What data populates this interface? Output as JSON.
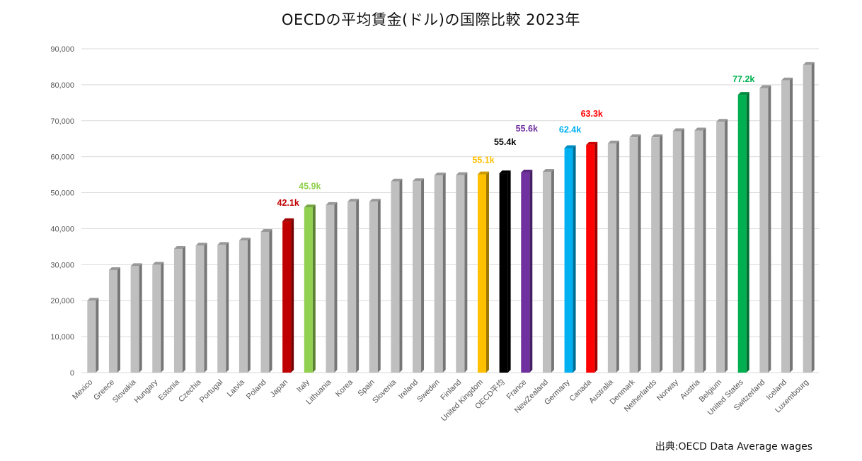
{
  "chart_data": {
    "type": "bar",
    "title": "OECDの平均賃金(ドル)の国際比較 2023年",
    "source": "出典:OECD Data Average wages",
    "xlabel": "",
    "ylabel": "",
    "ylim": [
      0,
      90000
    ],
    "yticks": [
      0,
      10000,
      20000,
      30000,
      40000,
      50000,
      60000,
      70000,
      80000,
      90000
    ],
    "ytick_labels": [
      "0",
      "10,000",
      "20,000",
      "30,000",
      "40,000",
      "50,000",
      "60,000",
      "70,000",
      "80,000",
      "90,000"
    ],
    "grid": true,
    "legend": "none",
    "categories": [
      "Mexico",
      "Greece",
      "Slovakia",
      "Hungary",
      "Estonia",
      "Czechia",
      "Portugal",
      "Latvia",
      "Poland",
      "Japan",
      "Italy",
      "Lithuania",
      "Korea",
      "Spain",
      "Slovenia",
      "Ireland",
      "Sweden",
      "Finland",
      "United Kingdom",
      "OECD平均",
      "France",
      "NewZealand",
      "Germany",
      "Canada",
      "Australia",
      "Denmark",
      "Netherlands",
      "Norway",
      "Austria",
      "Belgium",
      "United States",
      "Switzerland",
      "Iceland",
      "Luxembourg"
    ],
    "values": [
      20000,
      28500,
      29600,
      30000,
      34400,
      35300,
      35500,
      36700,
      39100,
      42100,
      45900,
      46600,
      47500,
      47500,
      53100,
      53200,
      54800,
      54900,
      55100,
      55400,
      55600,
      55800,
      62400,
      63300,
      63700,
      65400,
      65400,
      67100,
      67300,
      69700,
      77200,
      79100,
      81200,
      85500
    ],
    "default_color": "#bfbfbf",
    "highlights": [
      {
        "category": "Japan",
        "label": "42.1k",
        "color": "#c00000"
      },
      {
        "category": "Italy",
        "label": "45.9k",
        "color": "#92d050"
      },
      {
        "category": "United Kingdom",
        "label": "55.1k",
        "color": "#ffc000"
      },
      {
        "category": "OECD平均",
        "label": "55.4k",
        "color": "#000000"
      },
      {
        "category": "France",
        "label": "55.6k",
        "color": "#7030a0"
      },
      {
        "category": "Germany",
        "label": "62.4k",
        "color": "#00b0f0"
      },
      {
        "category": "Canada",
        "label": "63.3k",
        "color": "#ff0000"
      },
      {
        "category": "United States",
        "label": "77.2k",
        "color": "#00b050"
      }
    ]
  }
}
